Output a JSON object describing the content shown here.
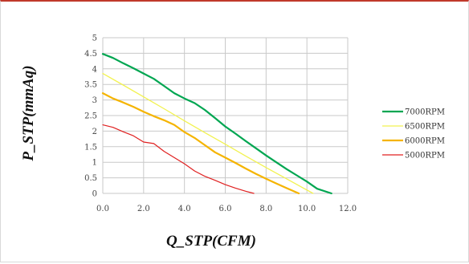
{
  "chart_data": {
    "type": "line",
    "title": "",
    "xlabel": "Q_STP(CFM)",
    "ylabel": "P_STP(mmAq)",
    "xlim": [
      0,
      12
    ],
    "ylim": [
      0,
      5
    ],
    "x_ticks": [
      "0.0",
      "2.0",
      "4.0",
      "6.0",
      "8.0",
      "10.0",
      "12.0"
    ],
    "y_ticks": [
      "0",
      "0.5",
      "1",
      "1.5",
      "2",
      "2.5",
      "3",
      "3.5",
      "4",
      "4.5",
      "5"
    ],
    "grid": true,
    "legend_position": "right",
    "series": [
      {
        "name": "7000RPM",
        "color": "#00a651",
        "width": 2.2,
        "points": [
          [
            0.0,
            4.48
          ],
          [
            0.5,
            4.35
          ],
          [
            1.0,
            4.18
          ],
          [
            1.5,
            4.02
          ],
          [
            2.0,
            3.85
          ],
          [
            2.5,
            3.68
          ],
          [
            3.0,
            3.45
          ],
          [
            3.5,
            3.22
          ],
          [
            4.0,
            3.05
          ],
          [
            4.5,
            2.9
          ],
          [
            5.0,
            2.68
          ],
          [
            5.5,
            2.42
          ],
          [
            6.0,
            2.15
          ],
          [
            6.5,
            1.92
          ],
          [
            7.0,
            1.68
          ],
          [
            7.5,
            1.45
          ],
          [
            8.0,
            1.22
          ],
          [
            8.5,
            1.0
          ],
          [
            9.0,
            0.78
          ],
          [
            9.5,
            0.58
          ],
          [
            10.0,
            0.38
          ],
          [
            10.5,
            0.15
          ],
          [
            11.2,
            0.0
          ]
        ]
      },
      {
        "name": "6500RPM",
        "color": "#f2f250",
        "width": 1.3,
        "points": [
          [
            0.0,
            3.85
          ],
          [
            1.0,
            3.48
          ],
          [
            2.0,
            3.1
          ],
          [
            3.0,
            2.72
          ],
          [
            4.0,
            2.33
          ],
          [
            5.0,
            1.95
          ],
          [
            6.0,
            1.58
          ],
          [
            7.0,
            1.2
          ],
          [
            8.0,
            0.83
          ],
          [
            9.0,
            0.47
          ],
          [
            10.3,
            0.0
          ]
        ]
      },
      {
        "name": "6000RPM",
        "color": "#f5b400",
        "width": 2.2,
        "points": [
          [
            0.0,
            3.22
          ],
          [
            0.5,
            3.05
          ],
          [
            1.0,
            2.92
          ],
          [
            1.5,
            2.78
          ],
          [
            2.0,
            2.62
          ],
          [
            2.5,
            2.48
          ],
          [
            3.0,
            2.35
          ],
          [
            3.5,
            2.2
          ],
          [
            4.0,
            1.97
          ],
          [
            4.5,
            1.78
          ],
          [
            5.0,
            1.55
          ],
          [
            5.5,
            1.32
          ],
          [
            6.0,
            1.15
          ],
          [
            6.5,
            0.98
          ],
          [
            7.0,
            0.8
          ],
          [
            7.5,
            0.63
          ],
          [
            8.0,
            0.47
          ],
          [
            8.5,
            0.32
          ],
          [
            9.0,
            0.17
          ],
          [
            9.6,
            0.0
          ]
        ]
      },
      {
        "name": "5000RPM",
        "color": "#e02020",
        "width": 1.2,
        "points": [
          [
            0.0,
            2.2
          ],
          [
            0.5,
            2.12
          ],
          [
            1.0,
            1.98
          ],
          [
            1.5,
            1.85
          ],
          [
            2.0,
            1.65
          ],
          [
            2.5,
            1.6
          ],
          [
            3.0,
            1.35
          ],
          [
            3.5,
            1.15
          ],
          [
            4.0,
            0.95
          ],
          [
            4.5,
            0.72
          ],
          [
            5.0,
            0.55
          ],
          [
            5.5,
            0.42
          ],
          [
            6.0,
            0.28
          ],
          [
            6.5,
            0.17
          ],
          [
            7.0,
            0.07
          ],
          [
            7.4,
            0.0
          ]
        ]
      }
    ]
  }
}
